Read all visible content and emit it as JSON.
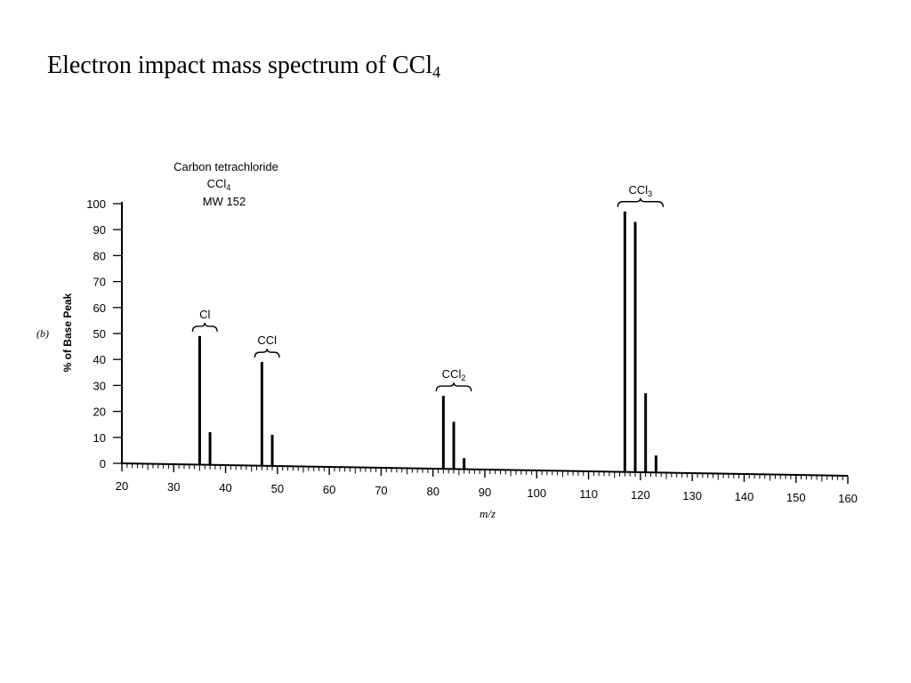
{
  "slide": {
    "title_main": "Electron impact mass spectrum of CCl",
    "title_sub": "4"
  },
  "chart_data": {
    "type": "bar",
    "compound": {
      "name": "Carbon tetrachloride",
      "formula_main": "CCl",
      "formula_sub": "4",
      "mw": "MW 152"
    },
    "panel_label": "(b)",
    "xlabel": "m/z",
    "ylabel": "% of Base Peak",
    "xlim": [
      20,
      160
    ],
    "ylim": [
      0,
      100
    ],
    "xticks": [
      20,
      30,
      40,
      50,
      60,
      70,
      80,
      90,
      100,
      110,
      120,
      130,
      140,
      150,
      160
    ],
    "yticks": [
      0,
      10,
      20,
      30,
      40,
      50,
      60,
      70,
      80,
      90,
      100
    ],
    "grid": false,
    "peaks": [
      {
        "mz": 35,
        "intensity": 49
      },
      {
        "mz": 37,
        "intensity": 12
      },
      {
        "mz": 47,
        "intensity": 39
      },
      {
        "mz": 49,
        "intensity": 11
      },
      {
        "mz": 82,
        "intensity": 26
      },
      {
        "mz": 84,
        "intensity": 16
      },
      {
        "mz": 86,
        "intensity": 2
      },
      {
        "mz": 117,
        "intensity": 97
      },
      {
        "mz": 119,
        "intensity": 93
      },
      {
        "mz": 121,
        "intensity": 27
      },
      {
        "mz": 123,
        "intensity": 3
      }
    ],
    "annotations": [
      {
        "text_main": "Cl",
        "text_sub": "",
        "from_mz": 35,
        "to_mz": 37,
        "intensity": 49
      },
      {
        "text_main": "CCl",
        "text_sub": "",
        "from_mz": 47,
        "to_mz": 49,
        "intensity": 39
      },
      {
        "text_main": "CCl",
        "text_sub": "2",
        "from_mz": 82,
        "to_mz": 86,
        "intensity": 26
      },
      {
        "text_main": "CCl",
        "text_sub": "3",
        "from_mz": 117,
        "to_mz": 123,
        "intensity": 97
      }
    ]
  }
}
